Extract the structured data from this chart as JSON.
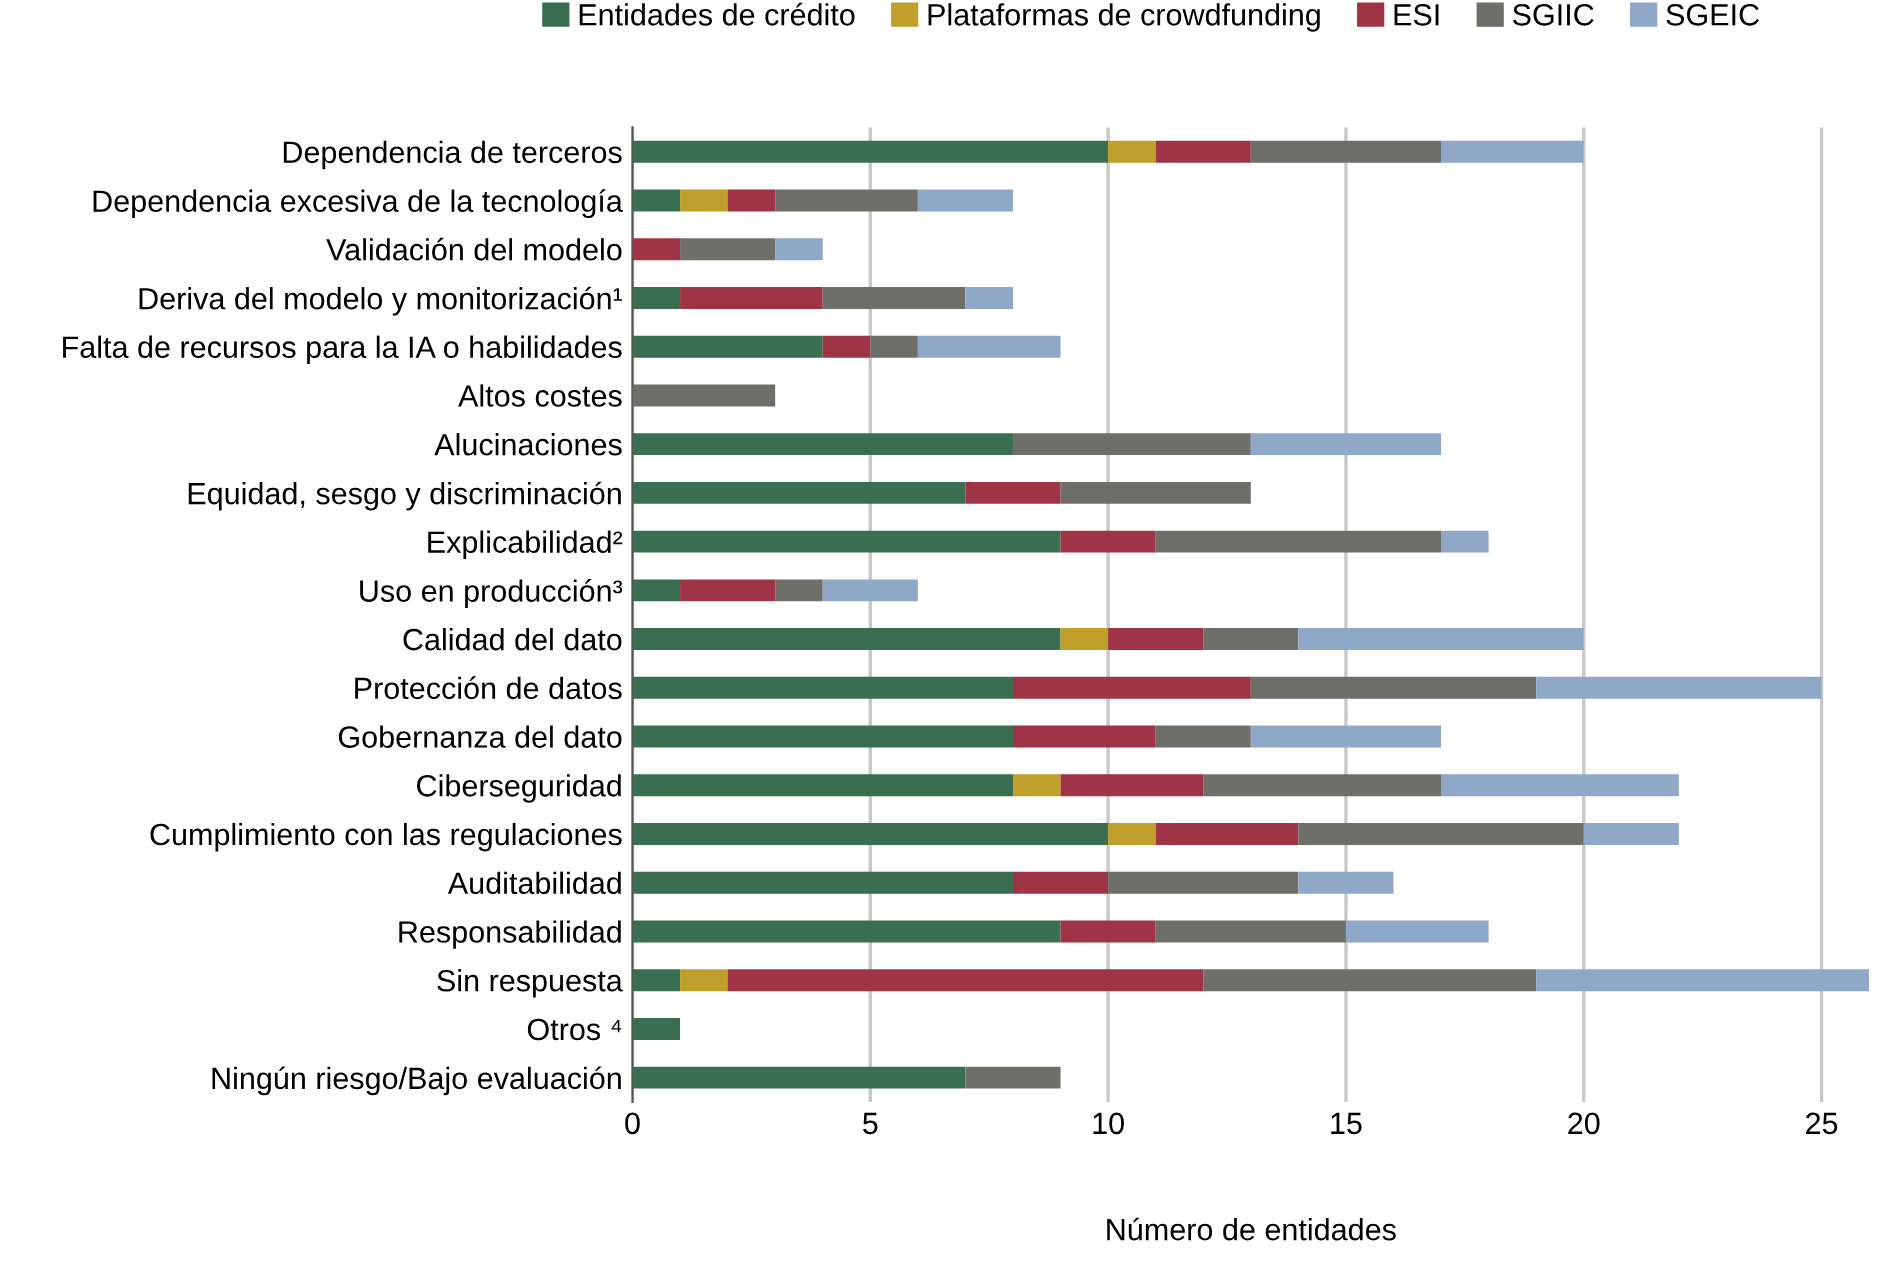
{
  "chart_data": {
    "type": "bar",
    "orientation": "horizontal",
    "stacked": true,
    "xlabel": "Número de entidades",
    "legend": "top",
    "grid": "x",
    "categories": [
      "Dependencia de terceros",
      "Dependencia excesiva de la tecnología",
      "Validación del modelo",
      "Deriva del modelo y monitorización¹",
      "Falta de recursos para la IA o habilidades",
      "Altos costes",
      "Alucinaciones",
      "Equidad, sesgo y discriminación",
      "Explicabilidad²",
      "Uso en producción³",
      "Calidad del dato",
      "Protección de datos",
      "Gobernanza del dato",
      "Ciberseguridad",
      "Cumplimiento con las regulaciones",
      "Auditabilidad",
      "Responsabilidad",
      "Sin respuesta",
      "Otros ⁴",
      "Ningún riesgo/Bajo evaluación"
    ],
    "series": [
      {
        "name": "Entidades de crédito",
        "color": "#3a6e50",
        "values": [
          10,
          1,
          0,
          1,
          4,
          0,
          8,
          7,
          9,
          1,
          9,
          8,
          8,
          8,
          10,
          8,
          9,
          1,
          1,
          7
        ]
      },
      {
        "name": "Plataformas de crowdfunding",
        "color": "#c0a02a",
        "values": [
          1,
          1,
          0,
          0,
          0,
          0,
          0,
          0,
          0,
          0,
          1,
          0,
          0,
          1,
          1,
          0,
          0,
          1,
          0,
          0
        ]
      },
      {
        "name": "ESI",
        "color": "#9e3445",
        "values": [
          2,
          1,
          1,
          3,
          1,
          0,
          0,
          2,
          2,
          2,
          2,
          5,
          3,
          3,
          3,
          2,
          2,
          10,
          0,
          0
        ]
      },
      {
        "name": "SGIIC",
        "color": "#6f6f6a",
        "values": [
          4,
          3,
          2,
          3,
          1,
          3,
          5,
          4,
          6,
          1,
          2,
          6,
          2,
          5,
          6,
          4,
          4,
          7,
          0,
          2
        ]
      },
      {
        "name": "SGEIC",
        "color": "#8fa8c8",
        "values": [
          3,
          2,
          1,
          1,
          3,
          0,
          4,
          0,
          1,
          2,
          6,
          6,
          4,
          5,
          2,
          2,
          3,
          7,
          0,
          0
        ]
      }
    ],
    "xlim": [
      0,
      26
    ],
    "xticks": [
      0,
      5,
      10,
      15,
      20,
      25
    ]
  }
}
